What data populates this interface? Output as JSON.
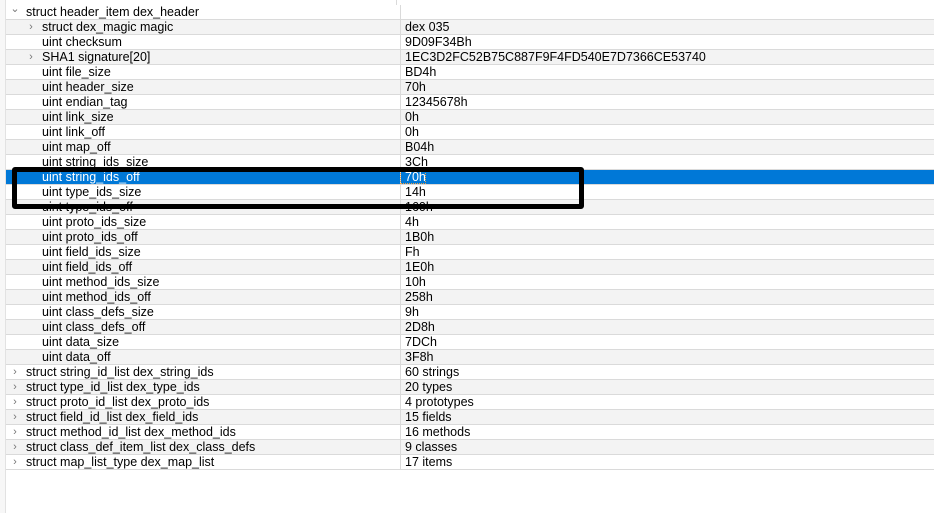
{
  "rows": [
    {
      "name": "struct header_item dex_header",
      "value": "",
      "level": 0,
      "expander": "expanded"
    },
    {
      "name": "struct dex_magic magic",
      "value": "dex 035",
      "level": 1,
      "expander": "collapsed"
    },
    {
      "name": "uint checksum",
      "value": "9D09F34Bh",
      "level": 1,
      "expander": "none"
    },
    {
      "name": "SHA1 signature[20]",
      "value": "1EC3D2FC52B75C887F9F4FD540E7D7366CE53740",
      "level": 1,
      "expander": "collapsed"
    },
    {
      "name": "uint file_size",
      "value": "BD4h",
      "level": 1,
      "expander": "none"
    },
    {
      "name": "uint header_size",
      "value": "70h",
      "level": 1,
      "expander": "none"
    },
    {
      "name": "uint endian_tag",
      "value": "12345678h",
      "level": 1,
      "expander": "none"
    },
    {
      "name": "uint link_size",
      "value": "0h",
      "level": 1,
      "expander": "none"
    },
    {
      "name": "uint link_off",
      "value": "0h",
      "level": 1,
      "expander": "none"
    },
    {
      "name": "uint map_off",
      "value": "B04h",
      "level": 1,
      "expander": "none"
    },
    {
      "name": "uint string_ids_size",
      "value": "3Ch",
      "level": 1,
      "expander": "none"
    },
    {
      "name": "uint string_ids_off",
      "value": "70h",
      "level": 1,
      "expander": "none",
      "selected": true
    },
    {
      "name": "uint type_ids_size",
      "value": "14h",
      "level": 1,
      "expander": "none"
    },
    {
      "name": "uint type_ids_off",
      "value": "160h",
      "level": 1,
      "expander": "none"
    },
    {
      "name": "uint proto_ids_size",
      "value": "4h",
      "level": 1,
      "expander": "none"
    },
    {
      "name": "uint proto_ids_off",
      "value": "1B0h",
      "level": 1,
      "expander": "none"
    },
    {
      "name": "uint field_ids_size",
      "value": "Fh",
      "level": 1,
      "expander": "none"
    },
    {
      "name": "uint field_ids_off",
      "value": "1E0h",
      "level": 1,
      "expander": "none"
    },
    {
      "name": "uint method_ids_size",
      "value": "10h",
      "level": 1,
      "expander": "none"
    },
    {
      "name": "uint method_ids_off",
      "value": "258h",
      "level": 1,
      "expander": "none"
    },
    {
      "name": "uint class_defs_size",
      "value": "9h",
      "level": 1,
      "expander": "none"
    },
    {
      "name": "uint class_defs_off",
      "value": "2D8h",
      "level": 1,
      "expander": "none"
    },
    {
      "name": "uint data_size",
      "value": "7DCh",
      "level": 1,
      "expander": "none"
    },
    {
      "name": "uint data_off",
      "value": "3F8h",
      "level": 1,
      "expander": "none"
    },
    {
      "name": "struct string_id_list dex_string_ids",
      "value": "60 strings",
      "level": 0,
      "expander": "collapsed"
    },
    {
      "name": "struct type_id_list dex_type_ids",
      "value": "20 types",
      "level": 0,
      "expander": "collapsed"
    },
    {
      "name": "struct proto_id_list dex_proto_ids",
      "value": "4 prototypes",
      "level": 0,
      "expander": "collapsed"
    },
    {
      "name": "struct field_id_list dex_field_ids",
      "value": "15 fields",
      "level": 0,
      "expander": "collapsed"
    },
    {
      "name": "struct method_id_list dex_method_ids",
      "value": "16 methods",
      "level": 0,
      "expander": "collapsed"
    },
    {
      "name": "struct class_def_item_list dex_class_defs",
      "value": "9 classes",
      "level": 0,
      "expander": "collapsed"
    },
    {
      "name": "struct map_list_type dex_map_list",
      "value": "17 items",
      "level": 0,
      "expander": "collapsed"
    }
  ],
  "colors": {
    "selection": "#0078d7",
    "alt_row": "#f3f3f3",
    "annotation_box": "#000000"
  }
}
